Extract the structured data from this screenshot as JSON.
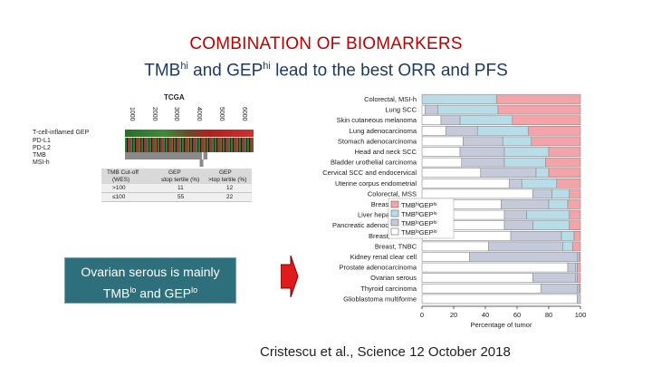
{
  "title": "COMBINATION OF BIOMARKERS",
  "subtitle": {
    "p1": "TMB",
    "s1": "hi",
    "p2": " and GEP",
    "s2": "hi",
    "p3": " lead to the best ORR and PFS"
  },
  "heatmap": {
    "title": "TCGA",
    "ticks": [
      "1000",
      "2000",
      "3000",
      "4000",
      "5000",
      "6000"
    ],
    "rows": [
      "T-cell-inflamed GEP",
      "PD-L1",
      "PD-L2",
      "TMB",
      "MSI-h"
    ]
  },
  "table": {
    "headers": [
      [
        "TMB Cut-off",
        "(WES)"
      ],
      [
        "GEP",
        "≤top tertile (%)"
      ],
      [
        "GEP",
        ">top tertile (%)"
      ]
    ],
    "rows": [
      [
        ">100",
        "11",
        "12"
      ],
      [
        "≤100",
        "55",
        "22"
      ]
    ]
  },
  "callout": {
    "p1": "Ovarian serous is mainly",
    "p2": "TMB",
    "s1": "lo",
    "p3": " and GEP",
    "s2": "lo"
  },
  "citation": "Cristescu et al., Science 12 October 2018",
  "colors": {
    "title_red": "#c00000",
    "subtitle_blue": "#1f3b63",
    "callout_bg": "#2e6f7c",
    "tmb_hi_gep_hi": "#f4a4a8",
    "tmb_hi_gep_lo": "#b8dde8",
    "tmb_lo_gep_hi": "#c5cadb",
    "tmb_lo_gep_lo": "#ffffff"
  },
  "chart_data": {
    "type": "bar",
    "orientation": "horizontal",
    "stacked": true,
    "xlabel": "Percentage of tumor",
    "xlim": [
      0,
      100
    ],
    "xticks": [
      0,
      20,
      40,
      60,
      80,
      100
    ],
    "legend": [
      {
        "base": "TMB",
        "s1": "hi",
        "mid": "GEP",
        "s2": "hi"
      },
      {
        "base": "TMB",
        "s1": "hi",
        "mid": "GEP",
        "s2": "lo"
      },
      {
        "base": "TMB",
        "s1": "lo",
        "mid": "GEP",
        "s2": "hi"
      },
      {
        "base": "TMB",
        "s1": "lo",
        "mid": "GEP",
        "s2": "lo"
      }
    ],
    "legend_placement": "center-left",
    "categories": [
      "Colorectal, MSI-h",
      "Lung SCC",
      "Skin cutaneous melanoma",
      "Lung adenocarcinoma",
      "Stomach adenocarcinoma",
      "Head and neck SCC",
      "Bladder urothelial carcinoma",
      "Cervical SCC and endocervical",
      "Uterine corpus endometrial",
      "Colorectal, MSS",
      "Breast, HER2+",
      "Liver hepatocellular",
      "Pancreatic adenocarcinoma",
      "Breast, invasive",
      "Breast, TNBC",
      "Kidney renal clear cell",
      "Prostate adenocarcinoma",
      "Ovarian serous",
      "Thyroid carcinoma",
      "Glioblastoma multiforme"
    ],
    "series": [
      {
        "name": "TMBloGEPlo",
        "values": [
          0,
          2,
          12,
          15,
          26,
          24,
          25,
          37,
          55,
          70,
          50,
          52,
          52,
          56,
          42,
          30,
          92,
          70,
          75,
          98
        ]
      },
      {
        "name": "TMBloGEPhi",
        "values": [
          0,
          8,
          12,
          20,
          25,
          28,
          27,
          35,
          8,
          12,
          30,
          14,
          18,
          32,
          47,
          68,
          5,
          27,
          23,
          2
        ]
      },
      {
        "name": "TMBhiGEPlo",
        "values": [
          47,
          38,
          33,
          32,
          18,
          28,
          26,
          8,
          22,
          11,
          12,
          27,
          23,
          8,
          6,
          1,
          1,
          1,
          1,
          0
        ]
      },
      {
        "name": "TMBhiGEPhi",
        "values": [
          53,
          52,
          43,
          33,
          31,
          20,
          22,
          20,
          15,
          7,
          8,
          7,
          7,
          4,
          5,
          1,
          2,
          2,
          1,
          0
        ]
      }
    ]
  }
}
